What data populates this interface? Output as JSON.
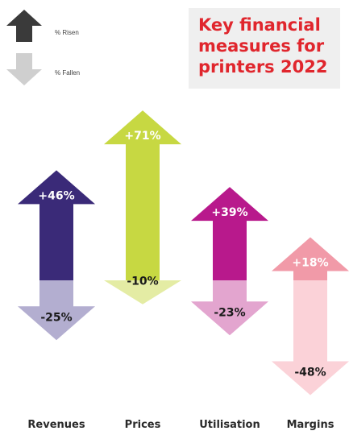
{
  "legend": {
    "risen_label": "% Risen",
    "fallen_label": "% Fallen",
    "risen_color": "#3a3a3a",
    "fallen_color": "#cfcfcf"
  },
  "title_box": {
    "title": "Key financial measures for printers 2022",
    "title_color": "#e0262d",
    "background": "#efefef"
  },
  "chart_data": {
    "type": "bar",
    "title": "Key financial measures for printers 2022",
    "categories": [
      "Revenues",
      "Prices",
      "Utilisation",
      "Margins"
    ],
    "series": [
      {
        "name": "% Risen",
        "values": [
          46,
          71,
          39,
          18
        ]
      },
      {
        "name": "% Fallen",
        "values": [
          -25,
          -10,
          -23,
          -48
        ]
      }
    ],
    "value_labels_risen": [
      "+46%",
      "+71%",
      "+39%",
      "+18%"
    ],
    "value_labels_fallen": [
      "-25%",
      "-10%",
      "-23%",
      "-48%"
    ],
    "colors_risen": [
      "#3a2a78",
      "#c7d842",
      "#b8198c",
      "#f19aa8"
    ],
    "colors_fallen": [
      "#b3aed0",
      "#e4eca4",
      "#e3a5cf",
      "#fbd2d8"
    ],
    "ylim": [
      -48,
      71
    ],
    "grid": false
  }
}
